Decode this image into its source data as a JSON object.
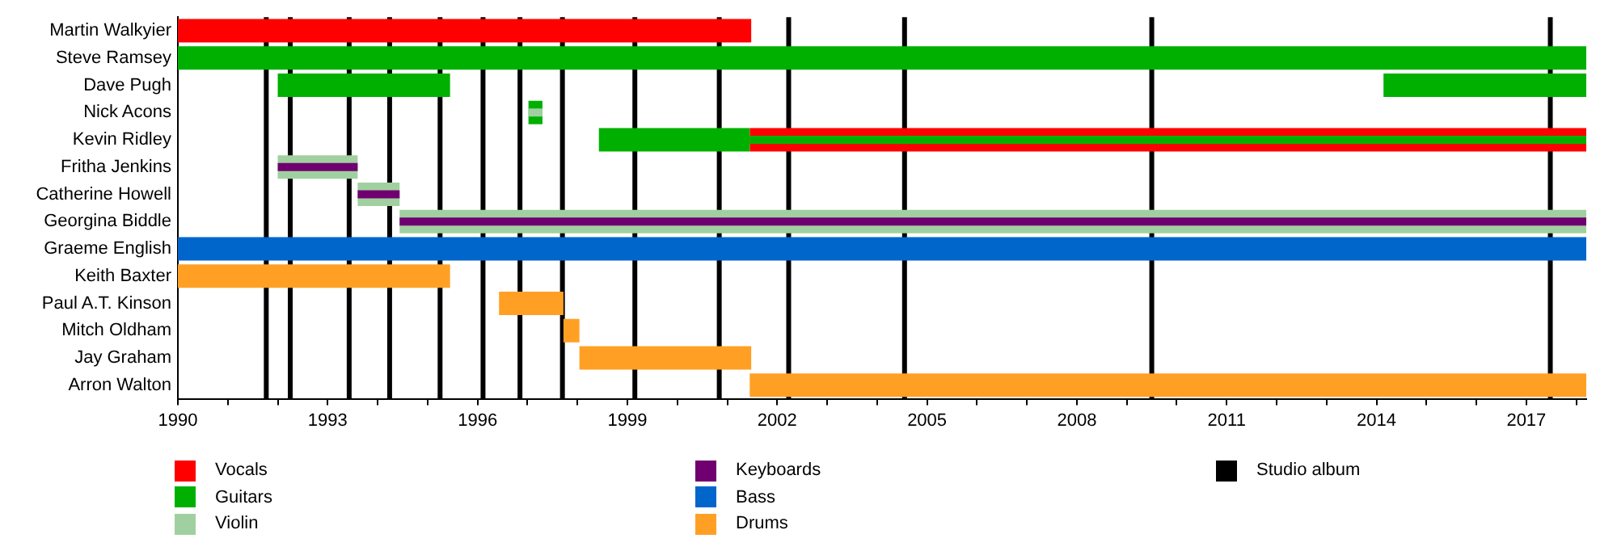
{
  "chart_data": {
    "type": "bar",
    "orientation": "horizontal",
    "categories": [
      "Martin Walkyier",
      "Steve Ramsey",
      "Dave Pugh",
      "Nick Acons",
      "Kevin Ridley",
      "Fritha Jenkins",
      "Catherine Howell",
      "Georgina Biddle",
      "Graeme English",
      "Keith Baxter",
      "Paul A.T. Kinson",
      "Mitch Oldham",
      "Jay Graham",
      "Arron Walton"
    ],
    "xlim": [
      1990,
      2018.2
    ],
    "xticks": [
      1990,
      {
        "value": 1991,
        "label": null
      },
      {
        "value": 1992,
        "label": null
      },
      1993,
      {
        "value": 1994,
        "label": null
      },
      {
        "value": 1995,
        "label": null
      },
      1996,
      {
        "value": 1997,
        "label": null
      },
      {
        "value": 1998,
        "label": null
      },
      1999,
      {
        "value": 2000,
        "label": null
      },
      {
        "value": 2001,
        "label": null
      },
      2002,
      {
        "value": 2003,
        "label": null
      },
      {
        "value": 2004,
        "label": null
      },
      2005,
      {
        "value": 2006,
        "label": null
      },
      {
        "value": 2007,
        "label": null
      },
      2008,
      {
        "value": 2009,
        "label": null
      },
      {
        "value": 2010,
        "label": null
      },
      2011,
      {
        "value": 2012,
        "label": null
      },
      {
        "value": 2013,
        "label": null
      },
      2014,
      {
        "value": 2015,
        "label": null
      },
      {
        "value": 2016,
        "label": null
      },
      2017,
      {
        "value": 2018,
        "label": null
      }
    ],
    "grid": false,
    "legend": "bottom",
    "series": [
      {
        "name": "Vocals",
        "color": "#ff0000",
        "base": [
          1990,
          null,
          null,
          null,
          2001.45,
          null,
          null,
          null,
          null,
          null,
          null,
          null,
          null,
          null
        ],
        "values": [
          11.48,
          null,
          null,
          null,
          16.75,
          null,
          null,
          null,
          null,
          null,
          null,
          null,
          null,
          null
        ]
      },
      {
        "name": "Guitars",
        "color": "#00b000",
        "base": [
          null,
          1990,
          1992.0,
          1997.02,
          1998.43,
          null,
          null,
          null,
          null,
          null,
          null,
          null,
          null,
          null
        ],
        "values": [
          null,
          28.2,
          3.45,
          0.28,
          3.02,
          null,
          null,
          null,
          null,
          null,
          null,
          null,
          null,
          null
        ]
      },
      {
        "color": "#00b000",
        "base": [
          null,
          null,
          2014.14,
          null,
          2001.45,
          null,
          null,
          null,
          null,
          null,
          null,
          null,
          null,
          null
        ],
        "values": [
          null,
          null,
          4.06,
          null,
          16.75,
          null,
          null,
          null,
          null,
          null,
          null,
          null,
          null,
          null
        ]
      },
      {
        "name": "Violin",
        "color": "#a0d0a0",
        "base": [
          null,
          null,
          null,
          1997.02,
          null,
          1992.0,
          1993.6,
          1994.44,
          null,
          null,
          null,
          null,
          null,
          null
        ],
        "values": [
          null,
          null,
          null,
          0.28,
          null,
          1.6,
          0.84,
          23.76,
          null,
          null,
          null,
          null,
          null,
          null
        ]
      },
      {
        "name": "Keyboards",
        "color": "#700070",
        "base": [
          null,
          null,
          null,
          null,
          null,
          1992.0,
          1993.6,
          1994.44,
          null,
          null,
          null,
          null,
          null,
          null
        ],
        "values": [
          null,
          null,
          null,
          null,
          null,
          1.6,
          0.84,
          23.76,
          null,
          null,
          null,
          null,
          null,
          null
        ]
      },
      {
        "name": "Bass",
        "color": "#0066cc",
        "base": [
          null,
          null,
          null,
          null,
          null,
          null,
          null,
          null,
          1990,
          null,
          null,
          null,
          null,
          null
        ],
        "values": [
          null,
          null,
          null,
          null,
          null,
          null,
          null,
          null,
          28.2,
          null,
          null,
          null,
          null,
          null
        ]
      },
      {
        "name": "Drums",
        "color": "#ffa024",
        "base": [
          null,
          null,
          null,
          null,
          null,
          null,
          null,
          null,
          null,
          1990,
          1996.43,
          1997.72,
          1998.04,
          2001.45
        ],
        "values": [
          null,
          null,
          null,
          null,
          null,
          null,
          null,
          null,
          null,
          5.45,
          1.29,
          0.32,
          3.44,
          16.75
        ]
      }
    ],
    "ref_lines": [
      {
        "axis": "x",
        "value": 1991.77,
        "label": "Studio album",
        "color": "#000000"
      },
      {
        "axis": "x",
        "value": 1992.25,
        "color": "#000000"
      },
      {
        "axis": "x",
        "value": 1993.43,
        "color": "#000000"
      },
      {
        "axis": "x",
        "value": 1994.24,
        "color": "#000000"
      },
      {
        "axis": "x",
        "value": 1995.25,
        "color": "#000000"
      },
      {
        "axis": "x",
        "value": 1996.11,
        "color": "#000000"
      },
      {
        "axis": "x",
        "value": 1996.85,
        "color": "#000000"
      },
      {
        "axis": "x",
        "value": 1997.7,
        "color": "#000000"
      },
      {
        "axis": "x",
        "value": 1999.15,
        "color": "#000000"
      },
      {
        "axis": "x",
        "value": 2000.84,
        "color": "#000000"
      },
      {
        "axis": "x",
        "value": 2002.23,
        "color": "#000000"
      },
      {
        "axis": "x",
        "value": 2004.55,
        "color": "#000000"
      },
      {
        "axis": "x",
        "value": 2009.5,
        "color": "#000000"
      },
      {
        "axis": "x",
        "value": 2017.48,
        "color": "#000000"
      }
    ]
  }
}
